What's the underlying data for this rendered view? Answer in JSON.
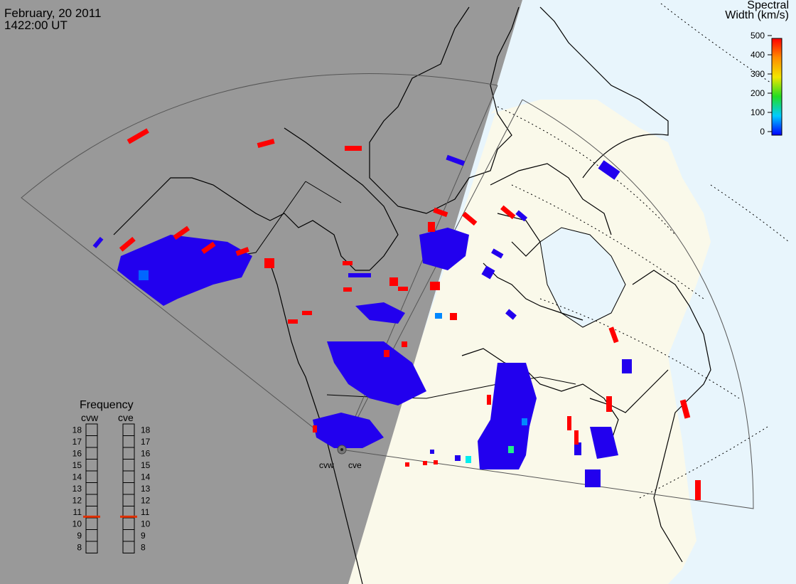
{
  "header": {
    "date": "February, 20 2011",
    "time": "1422:00 UT"
  },
  "colorbar": {
    "title_line1": "Spectral",
    "title_line2": "Width (km/s)",
    "ticks": [
      "500",
      "400",
      "300",
      "200",
      "100",
      "0"
    ],
    "stops": [
      "#ff0000",
      "#ff8c00",
      "#f2e600",
      "#22dd22",
      "#00dddd",
      "#0000ff"
    ]
  },
  "frequency": {
    "title": "Frequency",
    "radars": [
      "cvw",
      "cve"
    ],
    "scale": [
      "18",
      "17",
      "16",
      "15",
      "14",
      "13",
      "12",
      "11",
      "10",
      "9",
      "8"
    ],
    "cvw_mhz": 10.6,
    "cve_mhz": 10.6,
    "marker_color": "#e03000"
  },
  "stations": {
    "cvw": "cvw",
    "cve": "cve"
  },
  "colors": {
    "night": "#999999",
    "day_land": "#faf9ea",
    "day_ocean": "#e8f5fc",
    "scatter_low": "#2200ee",
    "scatter_high": "#ff0000"
  }
}
